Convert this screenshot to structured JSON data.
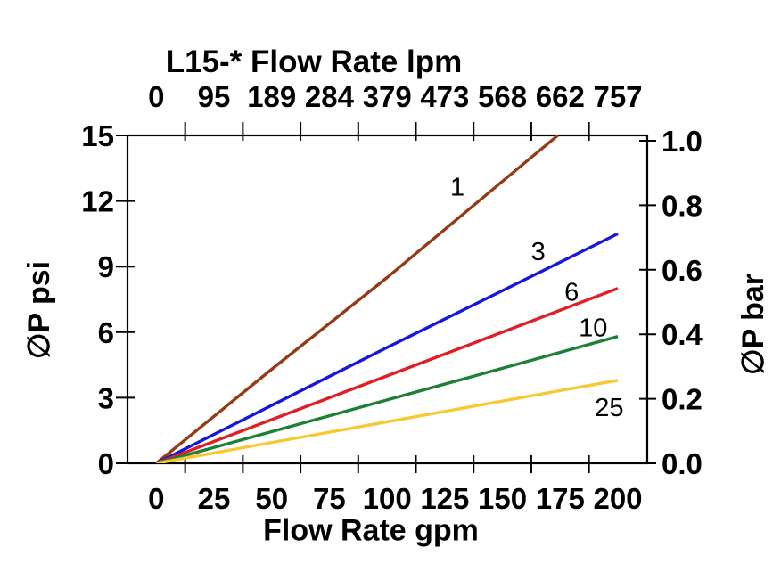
{
  "title": "L15-* Flow Rate lpm",
  "chart_data": {
    "type": "line",
    "title": "L15-* Flow Rate lpm",
    "xlabel_bottom": "Flow Rate gpm",
    "ylabel_left": "∅P psi",
    "ylabel_right": "∅P bar",
    "grid": false,
    "legend": "inline-labels-on-curves",
    "xlim_gpm": [
      0,
      200
    ],
    "ylim_psi": [
      0,
      15
    ],
    "ylim_bar": [
      0.0,
      1.0
    ],
    "x_tick_values_gpm": [
      0,
      25,
      50,
      75,
      100,
      125,
      150,
      175,
      200
    ],
    "x_ticklabels_bottom_gpm": [
      "0",
      "25",
      "50",
      "75",
      "100",
      "125",
      "150",
      "175",
      "200"
    ],
    "x_ticklabels_top_lpm": [
      "0",
      "95",
      "189",
      "284",
      "379",
      "473",
      "568",
      "662",
      "757"
    ],
    "x_minor_tick_values_gpm": [
      12.5,
      37.5,
      62.5,
      87.5,
      112.5,
      137.5,
      162.5,
      187.5
    ],
    "y_tick_values_psi": [
      0,
      3,
      6,
      9,
      12,
      15
    ],
    "y_ticklabels_left_psi": [
      "0",
      "3",
      "6",
      "9",
      "12",
      "15"
    ],
    "y_tick_values_bar": [
      0.0,
      0.2,
      0.4,
      0.6,
      0.8,
      1.0
    ],
    "y_ticklabels_right_bar": [
      "0.0",
      "0.2",
      "0.4",
      "0.6",
      "0.8",
      "1.0"
    ],
    "series": [
      {
        "name": "1",
        "color": "#943a18",
        "points_gpm_psi": [
          [
            0,
            0
          ],
          [
            50,
            4.3
          ],
          [
            100,
            8.5
          ],
          [
            150,
            12.9
          ],
          [
            174,
            15.0
          ]
        ],
        "label_at_gpm_psi": [
          130.5,
          12.65
        ]
      },
      {
        "name": "3",
        "color": "#1717d9",
        "points_gpm_psi": [
          [
            0,
            0
          ],
          [
            100,
            5.3
          ],
          [
            200,
            10.5
          ]
        ],
        "label_at_gpm_psi": [
          165.5,
          9.7
        ]
      },
      {
        "name": "6",
        "color": "#e01f25",
        "points_gpm_psi": [
          [
            0,
            0
          ],
          [
            100,
            4.0
          ],
          [
            200,
            8.0
          ]
        ],
        "label_at_gpm_psi": [
          180.0,
          7.85
        ]
      },
      {
        "name": "10",
        "color": "#1d8036",
        "points_gpm_psi": [
          [
            0,
            0
          ],
          [
            100,
            2.9
          ],
          [
            200,
            5.8
          ]
        ],
        "label_at_gpm_psi": [
          189.3,
          6.22
        ]
      },
      {
        "name": "25",
        "color": "#f8c832",
        "points_gpm_psi": [
          [
            0,
            0
          ],
          [
            100,
            1.9
          ],
          [
            200,
            3.8
          ]
        ],
        "label_at_gpm_psi": [
          196.3,
          2.57
        ]
      }
    ]
  }
}
